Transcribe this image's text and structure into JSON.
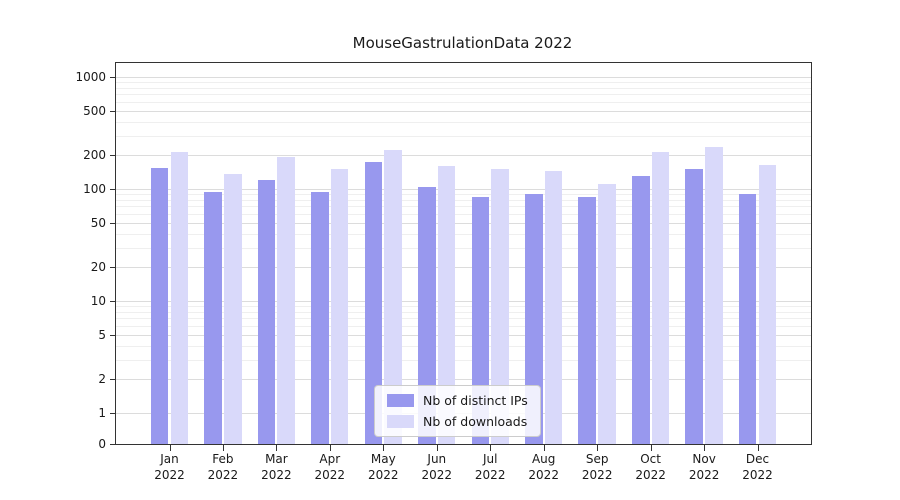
{
  "chart_data": {
    "type": "bar",
    "title": "MouseGastrulationData 2022",
    "categories": [
      "Jan",
      "Feb",
      "Mar",
      "Apr",
      "May",
      "Jun",
      "Jul",
      "Aug",
      "Sep",
      "Oct",
      "Nov",
      "Dec"
    ],
    "year": "2022",
    "series": [
      {
        "name": "Nb of distinct IPs",
        "color": "#9898ee",
        "values": [
          155,
          95,
          120,
          95,
          175,
          105,
          85,
          90,
          85,
          130,
          150,
          90
        ]
      },
      {
        "name": "Nb of downloads",
        "color": "#d9d9fa",
        "values": [
          215,
          135,
          195,
          150,
          225,
          160,
          150,
          145,
          110,
          215,
          235,
          165
        ]
      }
    ],
    "yticks": [
      0,
      1,
      2,
      5,
      10,
      20,
      50,
      100,
      200,
      500,
      1000
    ],
    "ylim": [
      0,
      1000
    ],
    "yscale": "symlog",
    "grid": "horizontal",
    "legend_position": "lower center",
    "grid_major_color": "#dcdcdc",
    "grid_minor_color": "#efefef"
  }
}
